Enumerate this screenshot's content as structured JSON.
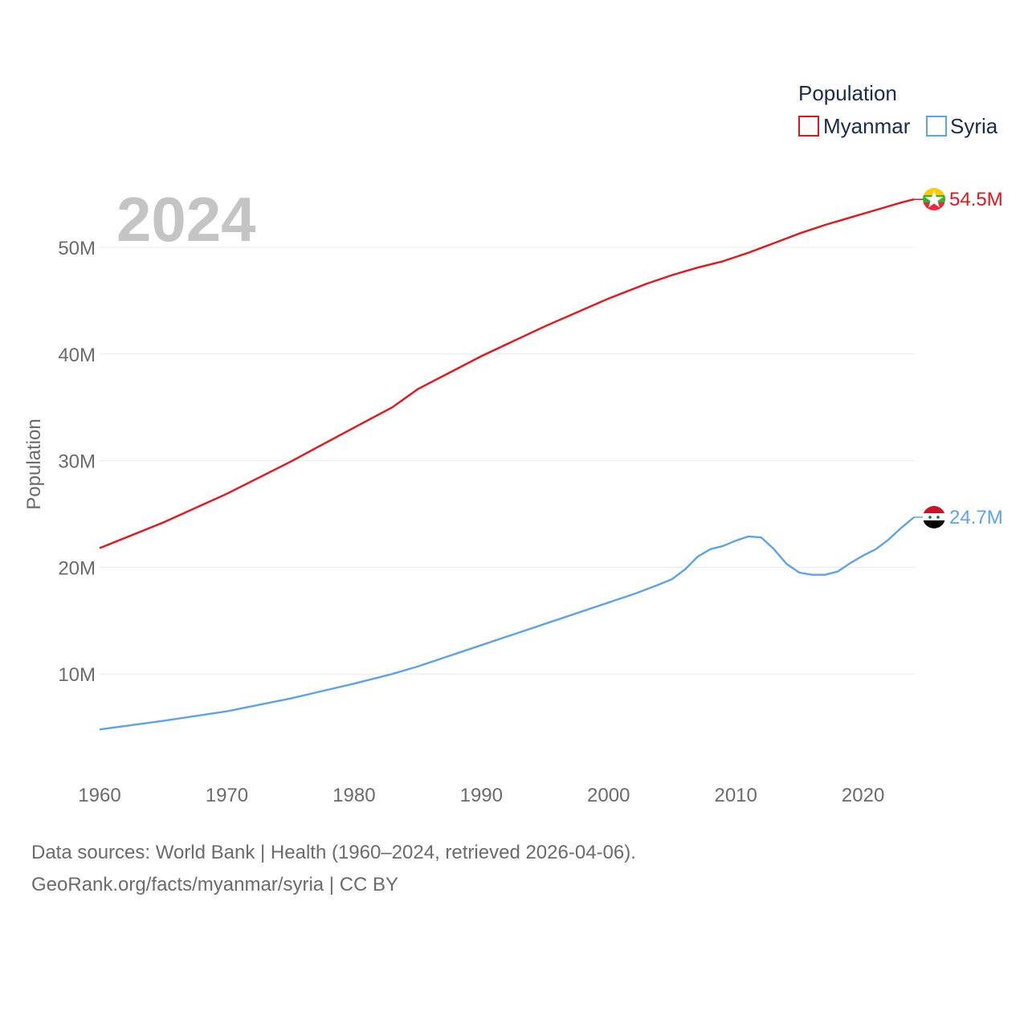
{
  "chart_data": {
    "type": "line",
    "title": "",
    "ylabel": "Population",
    "xlabel": "",
    "year_label": "2024",
    "xlim": [
      1960,
      2024
    ],
    "ylim": [
      0,
      55000000
    ],
    "x_ticks": [
      1960,
      1970,
      1980,
      1990,
      2000,
      2010,
      2020
    ],
    "x_tick_labels": [
      "1960",
      "1970",
      "1980",
      "1990",
      "2000",
      "2010",
      "2020"
    ],
    "y_ticks": [
      10000000,
      20000000,
      30000000,
      40000000,
      50000000
    ],
    "y_tick_labels": [
      "10M",
      "20M",
      "30M",
      "40M",
      "50M"
    ],
    "legend": {
      "title": "Population",
      "placement": "top-right"
    },
    "series": [
      {
        "name": "Myanmar",
        "color": "#e8141c",
        "end_label": "54.5M",
        "flag": "myanmar-flag",
        "points": [
          [
            1960,
            21800000
          ],
          [
            1965,
            24200000
          ],
          [
            1970,
            26900000
          ],
          [
            1975,
            29900000
          ],
          [
            1980,
            33100000
          ],
          [
            1983,
            35000000
          ],
          [
            1985,
            36700000
          ],
          [
            1990,
            39800000
          ],
          [
            1995,
            42600000
          ],
          [
            2000,
            45200000
          ],
          [
            2003,
            46600000
          ],
          [
            2005,
            47400000
          ],
          [
            2007,
            48100000
          ],
          [
            2009,
            48700000
          ],
          [
            2011,
            49500000
          ],
          [
            2013,
            50400000
          ],
          [
            2015,
            51300000
          ],
          [
            2017,
            52100000
          ],
          [
            2019,
            52800000
          ],
          [
            2021,
            53500000
          ],
          [
            2023,
            54200000
          ],
          [
            2024,
            54500000
          ]
        ]
      },
      {
        "name": "Syria",
        "color": "#5ea3e3",
        "end_label": "24.7M",
        "flag": "syria-flag",
        "points": [
          [
            1960,
            4800000
          ],
          [
            1965,
            5600000
          ],
          [
            1970,
            6500000
          ],
          [
            1975,
            7700000
          ],
          [
            1980,
            9100000
          ],
          [
            1983,
            10000000
          ],
          [
            1985,
            10700000
          ],
          [
            1990,
            12700000
          ],
          [
            1995,
            14700000
          ],
          [
            2000,
            16700000
          ],
          [
            2002,
            17500000
          ],
          [
            2004,
            18400000
          ],
          [
            2005,
            18900000
          ],
          [
            2006,
            19800000
          ],
          [
            2007,
            21000000
          ],
          [
            2008,
            21700000
          ],
          [
            2009,
            22000000
          ],
          [
            2010,
            22500000
          ],
          [
            2011,
            22900000
          ],
          [
            2012,
            22800000
          ],
          [
            2013,
            21700000
          ],
          [
            2014,
            20300000
          ],
          [
            2015,
            19500000
          ],
          [
            2016,
            19300000
          ],
          [
            2017,
            19300000
          ],
          [
            2018,
            19600000
          ],
          [
            2019,
            20400000
          ],
          [
            2020,
            21100000
          ],
          [
            2021,
            21700000
          ],
          [
            2022,
            22600000
          ],
          [
            2023,
            23700000
          ],
          [
            2024,
            24700000
          ]
        ]
      }
    ]
  },
  "footer": {
    "line1": "Data sources: World Bank | Health (1960–2024, retrieved 2026-04-06).",
    "line2": "GeoRank.org/facts/myanmar/syria | CC BY"
  }
}
